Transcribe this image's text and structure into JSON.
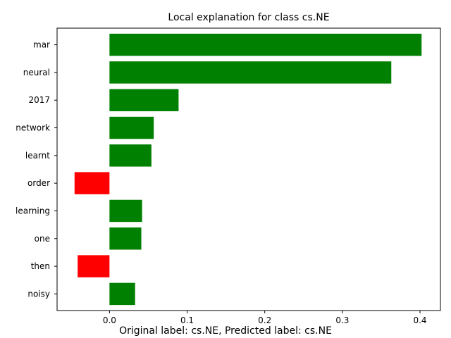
{
  "chart_data": {
    "type": "bar",
    "orientation": "horizontal",
    "title": "Local explanation for class cs.NE",
    "footer": "Original label: cs.NE, Predicted label: cs.NE",
    "categories": [
      "mar",
      "neural",
      "2017",
      "network",
      "learnt",
      "order",
      "learning",
      "one",
      "then",
      "noisy"
    ],
    "values": [
      0.402,
      0.363,
      0.089,
      0.057,
      0.054,
      -0.045,
      0.042,
      0.041,
      -0.041,
      0.033
    ],
    "xlim": [
      -0.0675,
      0.4263
    ],
    "xticks": [
      0.0,
      0.1,
      0.2,
      0.3,
      0.4
    ],
    "xtick_labels": [
      "0.0",
      "0.1",
      "0.2",
      "0.3",
      "0.4"
    ],
    "grid": false,
    "colors": {
      "positive": "#008000",
      "negative": "#ff0000",
      "axis": "#000000"
    }
  }
}
